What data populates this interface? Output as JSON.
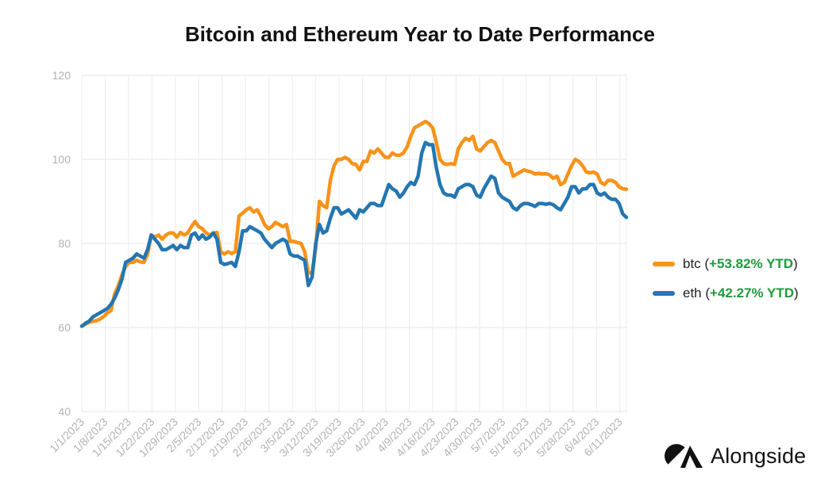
{
  "chart_data": {
    "type": "line",
    "title": "Bitcoin and Ethereum Year to Date Performance",
    "ylim": [
      40,
      120
    ],
    "yticks": [
      40,
      60,
      80,
      100,
      120
    ],
    "xticks": [
      "1/1/2023",
      "1/8/2023",
      "1/15/2023",
      "1/22/2023",
      "1/29/2023",
      "2/5/2023",
      "2/12/2023",
      "2/19/2023",
      "2/26/2023",
      "3/5/2023",
      "3/12/2023",
      "3/19/2023",
      "3/26/2023",
      "4/2/2023",
      "4/9/2023",
      "4/16/2023",
      "4/23/2023",
      "4/30/2023",
      "5/7/2023",
      "5/14/2023",
      "5/21/2023",
      "5/28/2023",
      "6/4/2023",
      "6/11/2023"
    ],
    "grid": true,
    "legend_position": "right",
    "series": [
      {
        "name": "btc",
        "ytd": "+53.82% YTD",
        "color": "#F7931A",
        "values": [
          60.3,
          60.8,
          61.2,
          61.5,
          61.6,
          62.0,
          62.6,
          63.5,
          64.0,
          68.0,
          70.0,
          72.5,
          74.5,
          75.5,
          75.5,
          76.0,
          75.6,
          75.5,
          77.5,
          82.0,
          81.5,
          82.0,
          81.0,
          82.0,
          82.5,
          82.5,
          81.5,
          82.6,
          82.0,
          82.5,
          84.0,
          85.2,
          84.0,
          83.5,
          82.5,
          82.0,
          82.5,
          82.6,
          78.0,
          77.5,
          78.0,
          77.6,
          78.0,
          86.5,
          87.2,
          88.0,
          88.5,
          87.5,
          88.0,
          86.5,
          84.5,
          83.5,
          84.0,
          85.0,
          84.5,
          84.0,
          84.5,
          80.5,
          80.5,
          80.2,
          80.0,
          78.0,
          73.0,
          73.0,
          79.0,
          90.0,
          89.0,
          88.5,
          95.0,
          98.5,
          100.0,
          100.0,
          100.5,
          100.0,
          99.0,
          98.8,
          97.5,
          99.5,
          99.5,
          102.0,
          101.5,
          102.5,
          101.5,
          100.5,
          100.5,
          101.5,
          101.0,
          101.0,
          101.5,
          103.0,
          105.5,
          107.5,
          108.0,
          108.5,
          109.0,
          108.5,
          107.5,
          104.0,
          100.0,
          99.0,
          98.8,
          99.0,
          98.8,
          102.5,
          104.0,
          105.0,
          104.5,
          105.5,
          102.5,
          102.0,
          103.0,
          104.0,
          104.5,
          104.0,
          102.0,
          100.0,
          99.0,
          99.0,
          96.0,
          96.5,
          97.0,
          97.5,
          97.2,
          97.0,
          96.5,
          96.7,
          96.5,
          96.6,
          96.3,
          95.5,
          96.0,
          94.0,
          94.5,
          96.5,
          98.5,
          100.0,
          99.5,
          98.5,
          97.0,
          96.8,
          97.0,
          96.5,
          94.5,
          94.0,
          95.0,
          95.0,
          94.5,
          93.5,
          93.0,
          92.9
        ]
      },
      {
        "name": "eth",
        "ytd": "+42.27% YTD",
        "color": "#2476B1",
        "values": [
          60.3,
          61.0,
          61.5,
          62.5,
          63.0,
          63.5,
          64.0,
          64.5,
          65.5,
          67.0,
          69.0,
          71.5,
          75.5,
          76.0,
          76.5,
          77.5,
          77.0,
          76.5,
          78.5,
          82.0,
          81.0,
          80.0,
          78.5,
          78.5,
          79.0,
          79.5,
          78.5,
          79.5,
          79.0,
          79.0,
          82.0,
          82.5,
          81.0,
          82.0,
          81.0,
          81.5,
          82.5,
          81.0,
          75.5,
          75.0,
          75.2,
          75.5,
          74.5,
          78.0,
          83.0,
          83.0,
          84.0,
          83.5,
          83.0,
          82.5,
          81.0,
          80.0,
          79.0,
          80.0,
          80.5,
          81.0,
          80.5,
          77.5,
          77.0,
          77.0,
          76.5,
          76.0,
          70.0,
          72.0,
          80.0,
          84.5,
          82.5,
          83.0,
          86.0,
          88.5,
          88.5,
          87.0,
          87.5,
          88.0,
          87.0,
          86.0,
          88.0,
          87.5,
          88.5,
          89.5,
          89.5,
          89.0,
          89.0,
          91.5,
          94.0,
          93.0,
          92.5,
          91.0,
          92.0,
          93.5,
          94.5,
          94.0,
          96.0,
          101.5,
          104.0,
          103.5,
          103.5,
          98.0,
          94.0,
          92.0,
          91.5,
          91.5,
          91.0,
          93.0,
          93.5,
          94.0,
          94.0,
          93.5,
          91.5,
          91.0,
          93.0,
          94.5,
          96.0,
          95.5,
          92.0,
          91.0,
          90.5,
          90.0,
          88.5,
          88.0,
          89.0,
          89.5,
          89.5,
          89.2,
          88.8,
          89.5,
          89.5,
          89.3,
          89.5,
          89.2,
          88.5,
          88.0,
          89.5,
          91.0,
          93.5,
          93.5,
          92.0,
          93.0,
          93.0,
          94.0,
          94.0,
          92.0,
          91.5,
          92.0,
          91.0,
          90.5,
          90.5,
          89.5,
          87.0,
          86.2
        ]
      }
    ]
  },
  "branding": {
    "logo_text": "Alongside",
    "logo_icon": "alongside-logo-icon"
  }
}
